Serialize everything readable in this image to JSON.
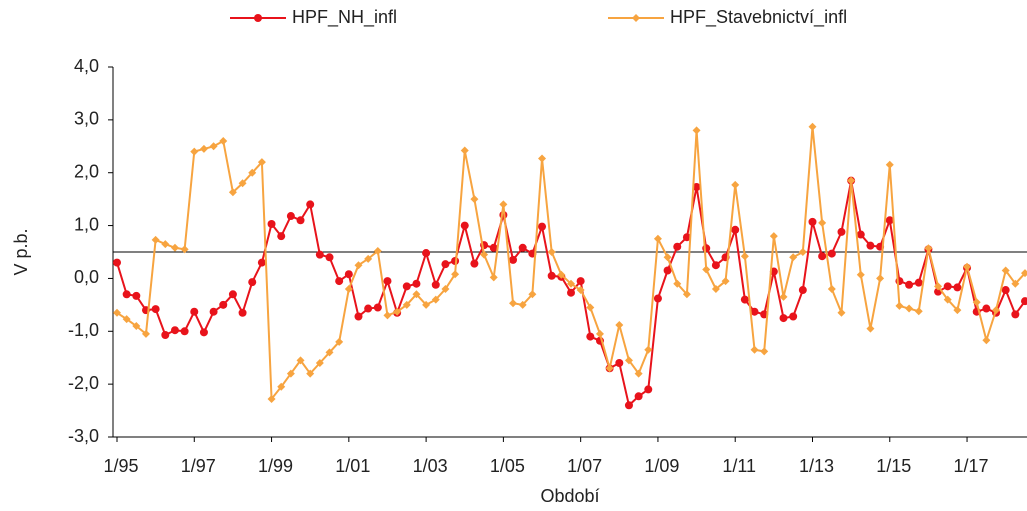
{
  "chart_data": {
    "type": "line",
    "y_label": "V p.b.",
    "x_label": "Období",
    "categories": [
      "1/95",
      null,
      null,
      null,
      null,
      null,
      null,
      null,
      "1/97",
      null,
      null,
      null,
      null,
      null,
      null,
      null,
      "1/99",
      null,
      null,
      null,
      null,
      null,
      null,
      null,
      "1/01",
      null,
      null,
      null,
      null,
      null,
      null,
      null,
      "1/03",
      null,
      null,
      null,
      null,
      null,
      null,
      null,
      "1/05",
      null,
      null,
      null,
      null,
      null,
      null,
      null,
      "1/07",
      null,
      null,
      null,
      null,
      null,
      null,
      null,
      "1/09",
      null,
      null,
      null,
      null,
      null,
      null,
      null,
      "1/11",
      null,
      null,
      null,
      null,
      null,
      null,
      null,
      "1/13",
      null,
      null,
      null,
      null,
      null,
      null,
      null,
      "1/15",
      null,
      null,
      null,
      null,
      null,
      null,
      null,
      "1/17",
      null,
      null,
      null,
      null,
      null,
      null
    ],
    "series": [
      {
        "name": "HPF_NH_infl",
        "color": "#e8131b",
        "marker": "circle",
        "values": [
          0.3,
          -0.3,
          -0.33,
          -0.6,
          -0.58,
          -1.07,
          -0.98,
          -1.0,
          -0.63,
          -1.02,
          -0.63,
          -0.5,
          -0.3,
          -0.65,
          -0.07,
          0.3,
          1.03,
          0.8,
          1.18,
          1.1,
          1.4,
          0.45,
          0.4,
          -0.05,
          0.08,
          -0.72,
          -0.57,
          -0.55,
          -0.05,
          -0.65,
          -0.15,
          -0.1,
          0.48,
          -0.12,
          0.27,
          0.33,
          1.0,
          0.28,
          0.63,
          0.58,
          1.2,
          0.35,
          0.58,
          0.47,
          0.98,
          0.05,
          0.03,
          -0.27,
          -0.05,
          -1.1,
          -1.18,
          -1.7,
          -1.6,
          -2.4,
          -2.23,
          -2.1,
          -0.38,
          0.15,
          0.6,
          0.78,
          1.73,
          0.57,
          0.25,
          0.4,
          0.92,
          -0.4,
          -0.63,
          -0.68,
          0.13,
          -0.75,
          -0.72,
          -0.22,
          1.07,
          0.42,
          0.47,
          0.88,
          1.85,
          0.83,
          0.62,
          0.6,
          1.1,
          -0.05,
          -0.12,
          -0.08,
          0.55,
          -0.25,
          -0.15,
          -0.17,
          0.2,
          -0.63,
          -0.57,
          -0.65,
          -0.22,
          -0.68,
          -0.43
        ]
      },
      {
        "name": "HPF_Stavebnictví_infl",
        "color": "#f7a440",
        "marker": "diamond",
        "values": [
          -0.65,
          -0.77,
          -0.9,
          -1.05,
          0.73,
          0.65,
          0.58,
          0.55,
          2.4,
          2.45,
          2.5,
          2.6,
          1.63,
          1.8,
          2.0,
          2.2,
          -2.28,
          -2.05,
          -1.8,
          -1.55,
          -1.8,
          -1.6,
          -1.4,
          -1.2,
          -0.2,
          0.25,
          0.37,
          0.52,
          -0.7,
          -0.63,
          -0.5,
          -0.3,
          -0.5,
          -0.4,
          -0.2,
          0.08,
          2.42,
          1.5,
          0.45,
          0.02,
          1.4,
          -0.47,
          -0.5,
          -0.3,
          2.27,
          0.5,
          0.07,
          -0.1,
          -0.22,
          -0.55,
          -1.05,
          -1.7,
          -0.88,
          -1.55,
          -1.8,
          -1.35,
          0.75,
          0.4,
          -0.1,
          -0.3,
          2.8,
          0.17,
          -0.2,
          -0.05,
          1.77,
          0.42,
          -1.35,
          -1.38,
          0.8,
          -0.35,
          0.4,
          0.5,
          2.87,
          1.05,
          -0.2,
          -0.65,
          1.85,
          0.07,
          -0.95,
          0.0,
          2.15,
          -0.52,
          -0.57,
          -0.62,
          0.57,
          -0.15,
          -0.4,
          -0.6,
          0.22,
          -0.45,
          -1.17,
          -0.6,
          0.15,
          -0.1,
          0.1
        ]
      }
    ],
    "ylim": [
      -3,
      4
    ],
    "yticks": [
      {
        "value": -3,
        "label": "-3,0"
      },
      {
        "value": -2,
        "label": "-2,0"
      },
      {
        "value": -1,
        "label": "-1,0"
      },
      {
        "value": 0,
        "label": "0,0"
      },
      {
        "value": 1,
        "label": "1,0"
      },
      {
        "value": 2,
        "label": "2,0"
      },
      {
        "value": 3,
        "label": "3,0"
      },
      {
        "value": 4,
        "label": "4,0"
      }
    ],
    "reference_line": 0.5,
    "legend": "top",
    "grid": false
  }
}
